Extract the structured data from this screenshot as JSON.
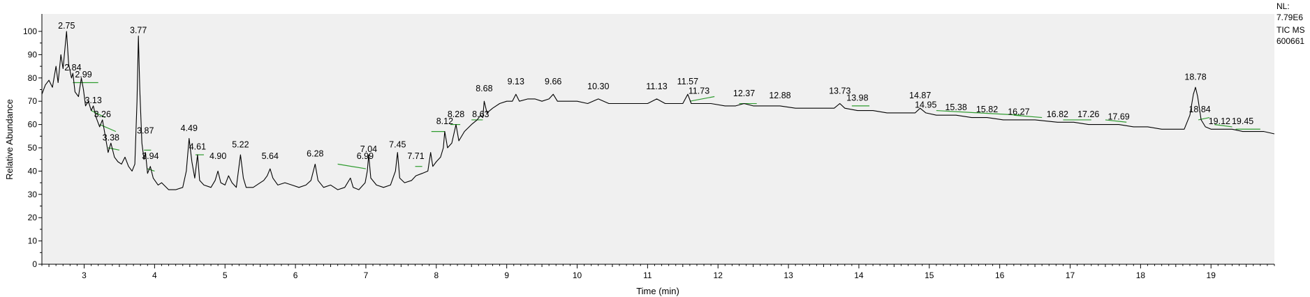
{
  "info": {
    "nl_label": "NL:",
    "nl_value": "7.79E6",
    "scan_filter": "TIC  MS",
    "sample_id": "600661"
  },
  "chart_data": {
    "type": "line",
    "title": "",
    "xlabel": "Time (min)",
    "ylabel": "Relative Abundance",
    "xlim": [
      2.4,
      19.9
    ],
    "ylim": [
      0,
      100
    ],
    "xticks": [
      3,
      4,
      5,
      6,
      7,
      8,
      9,
      10,
      11,
      12,
      13,
      14,
      15,
      16,
      17,
      18,
      19
    ],
    "yticks": [
      0,
      10,
      20,
      30,
      40,
      50,
      60,
      70,
      80,
      90,
      100
    ],
    "grid": false,
    "colors": {
      "trace": "#000000",
      "plot_bg": "#f0f0f0",
      "baseline": "#2e9b2e"
    },
    "series": [
      {
        "points": [
          [
            2.4,
            73
          ],
          [
            2.45,
            77
          ],
          [
            2.5,
            79
          ],
          [
            2.55,
            76
          ],
          [
            2.6,
            85
          ],
          [
            2.63,
            78
          ],
          [
            2.67,
            90
          ],
          [
            2.7,
            84
          ],
          [
            2.75,
            100
          ],
          [
            2.78,
            86
          ],
          [
            2.82,
            80
          ],
          [
            2.84,
            82
          ],
          [
            2.87,
            74
          ],
          [
            2.92,
            72
          ],
          [
            2.96,
            80
          ],
          [
            2.99,
            75
          ],
          [
            3.02,
            68
          ],
          [
            3.06,
            70
          ],
          [
            3.1,
            66
          ],
          [
            3.13,
            68
          ],
          [
            3.17,
            63
          ],
          [
            3.22,
            59
          ],
          [
            3.26,
            62
          ],
          [
            3.3,
            55
          ],
          [
            3.34,
            48
          ],
          [
            3.38,
            52
          ],
          [
            3.43,
            46
          ],
          [
            3.48,
            44
          ],
          [
            3.53,
            43
          ],
          [
            3.58,
            46
          ],
          [
            3.63,
            42
          ],
          [
            3.68,
            40
          ],
          [
            3.72,
            43
          ],
          [
            3.75,
            70
          ],
          [
            3.77,
            98
          ],
          [
            3.79,
            75
          ],
          [
            3.82,
            52
          ],
          [
            3.85,
            45
          ],
          [
            3.87,
            48
          ],
          [
            3.9,
            39
          ],
          [
            3.94,
            42
          ],
          [
            3.98,
            37
          ],
          [
            4.05,
            34
          ],
          [
            4.1,
            35
          ],
          [
            4.2,
            32
          ],
          [
            4.3,
            32
          ],
          [
            4.4,
            33
          ],
          [
            4.45,
            40
          ],
          [
            4.49,
            54
          ],
          [
            4.53,
            44
          ],
          [
            4.57,
            37
          ],
          [
            4.61,
            47
          ],
          [
            4.64,
            36
          ],
          [
            4.7,
            34
          ],
          [
            4.8,
            33
          ],
          [
            4.86,
            36
          ],
          [
            4.9,
            40
          ],
          [
            4.94,
            35
          ],
          [
            5.0,
            34
          ],
          [
            5.05,
            38
          ],
          [
            5.1,
            35
          ],
          [
            5.16,
            33
          ],
          [
            5.22,
            47
          ],
          [
            5.26,
            37
          ],
          [
            5.3,
            33
          ],
          [
            5.4,
            33
          ],
          [
            5.5,
            35
          ],
          [
            5.55,
            36
          ],
          [
            5.6,
            38
          ],
          [
            5.64,
            41
          ],
          [
            5.68,
            37
          ],
          [
            5.75,
            34
          ],
          [
            5.85,
            35
          ],
          [
            5.95,
            34
          ],
          [
            6.05,
            33
          ],
          [
            6.15,
            34
          ],
          [
            6.22,
            36
          ],
          [
            6.28,
            43
          ],
          [
            6.32,
            36
          ],
          [
            6.4,
            33
          ],
          [
            6.5,
            34
          ],
          [
            6.6,
            32
          ],
          [
            6.7,
            33
          ],
          [
            6.78,
            37
          ],
          [
            6.82,
            33
          ],
          [
            6.9,
            32
          ],
          [
            6.99,
            35
          ],
          [
            7.02,
            40
          ],
          [
            7.04,
            47
          ],
          [
            7.07,
            37
          ],
          [
            7.15,
            34
          ],
          [
            7.25,
            33
          ],
          [
            7.35,
            34
          ],
          [
            7.42,
            40
          ],
          [
            7.45,
            48
          ],
          [
            7.48,
            37
          ],
          [
            7.55,
            35
          ],
          [
            7.65,
            36
          ],
          [
            7.71,
            38
          ],
          [
            7.8,
            39
          ],
          [
            7.88,
            40
          ],
          [
            7.92,
            48
          ],
          [
            7.95,
            42
          ],
          [
            8.0,
            44
          ],
          [
            8.06,
            46
          ],
          [
            8.1,
            50
          ],
          [
            8.12,
            57
          ],
          [
            8.16,
            50
          ],
          [
            8.22,
            52
          ],
          [
            8.28,
            60
          ],
          [
            8.32,
            53
          ],
          [
            8.4,
            57
          ],
          [
            8.5,
            60
          ],
          [
            8.58,
            62
          ],
          [
            8.63,
            64
          ],
          [
            8.66,
            63
          ],
          [
            8.68,
            70
          ],
          [
            8.72,
            65
          ],
          [
            8.8,
            67
          ],
          [
            8.9,
            69
          ],
          [
            9.0,
            70
          ],
          [
            9.08,
            70
          ],
          [
            9.13,
            73
          ],
          [
            9.18,
            70
          ],
          [
            9.3,
            71
          ],
          [
            9.4,
            71
          ],
          [
            9.5,
            70
          ],
          [
            9.6,
            71
          ],
          [
            9.66,
            73
          ],
          [
            9.72,
            70
          ],
          [
            9.85,
            70
          ],
          [
            10.0,
            70
          ],
          [
            10.15,
            69
          ],
          [
            10.3,
            71
          ],
          [
            10.45,
            69
          ],
          [
            10.6,
            69
          ],
          [
            10.8,
            69
          ],
          [
            11.0,
            69
          ],
          [
            11.13,
            71
          ],
          [
            11.25,
            69
          ],
          [
            11.4,
            69
          ],
          [
            11.5,
            69
          ],
          [
            11.57,
            73
          ],
          [
            11.62,
            69
          ],
          [
            11.73,
            69
          ],
          [
            11.9,
            69
          ],
          [
            12.1,
            68
          ],
          [
            12.25,
            68
          ],
          [
            12.37,
            69
          ],
          [
            12.5,
            68
          ],
          [
            12.7,
            68
          ],
          [
            12.88,
            68
          ],
          [
            13.1,
            67
          ],
          [
            13.3,
            67
          ],
          [
            13.5,
            67
          ],
          [
            13.65,
            67
          ],
          [
            13.73,
            69
          ],
          [
            13.8,
            67
          ],
          [
            13.98,
            66
          ],
          [
            14.2,
            66
          ],
          [
            14.4,
            65
          ],
          [
            14.6,
            65
          ],
          [
            14.8,
            65
          ],
          [
            14.87,
            67
          ],
          [
            14.95,
            65
          ],
          [
            15.1,
            64
          ],
          [
            15.38,
            64
          ],
          [
            15.6,
            63
          ],
          [
            15.82,
            63
          ],
          [
            16.05,
            62
          ],
          [
            16.27,
            62
          ],
          [
            16.5,
            62
          ],
          [
            16.82,
            61
          ],
          [
            17.05,
            61
          ],
          [
            17.26,
            60
          ],
          [
            17.5,
            60
          ],
          [
            17.69,
            60
          ],
          [
            17.9,
            59
          ],
          [
            18.1,
            59
          ],
          [
            18.3,
            58
          ],
          [
            18.5,
            58
          ],
          [
            18.62,
            58
          ],
          [
            18.7,
            64
          ],
          [
            18.75,
            73
          ],
          [
            18.78,
            76
          ],
          [
            18.81,
            72
          ],
          [
            18.86,
            62
          ],
          [
            18.92,
            59
          ],
          [
            19.0,
            58
          ],
          [
            19.12,
            58
          ],
          [
            19.3,
            58
          ],
          [
            19.45,
            57
          ],
          [
            19.6,
            57
          ],
          [
            19.75,
            57
          ],
          [
            19.9,
            56
          ]
        ]
      }
    ],
    "annotations": [
      {
        "text": "2.75",
        "x": 2.75,
        "y": 100
      },
      {
        "text": "2.84",
        "x": 2.84,
        "y": 82
      },
      {
        "text": "2.99",
        "x": 2.99,
        "y": 79
      },
      {
        "text": "3.13",
        "x": 3.13,
        "y": 68
      },
      {
        "text": "3.26",
        "x": 3.26,
        "y": 62
      },
      {
        "text": "3.38",
        "x": 3.38,
        "y": 52
      },
      {
        "text": "3.77",
        "x": 3.77,
        "y": 98
      },
      {
        "text": "3.87",
        "x": 3.87,
        "y": 55
      },
      {
        "text": "3.94",
        "x": 3.94,
        "y": 44
      },
      {
        "text": "4.49",
        "x": 4.49,
        "y": 56
      },
      {
        "text": "4.61",
        "x": 4.61,
        "y": 48
      },
      {
        "text": "4.90",
        "x": 4.9,
        "y": 44
      },
      {
        "text": "5.22",
        "x": 5.22,
        "y": 49
      },
      {
        "text": "5.64",
        "x": 5.64,
        "y": 44
      },
      {
        "text": "6.28",
        "x": 6.28,
        "y": 45
      },
      {
        "text": "6.99",
        "x": 6.99,
        "y": 44
      },
      {
        "text": "7.04",
        "x": 7.04,
        "y": 47
      },
      {
        "text": "7.45",
        "x": 7.45,
        "y": 49
      },
      {
        "text": "7.71",
        "x": 7.71,
        "y": 44
      },
      {
        "text": "8.12",
        "x": 8.12,
        "y": 59
      },
      {
        "text": "8.28",
        "x": 8.28,
        "y": 62
      },
      {
        "text": "8.63",
        "x": 8.63,
        "y": 62
      },
      {
        "text": "8.68",
        "x": 8.68,
        "y": 73
      },
      {
        "text": "9.13",
        "x": 9.13,
        "y": 76
      },
      {
        "text": "9.66",
        "x": 9.66,
        "y": 76
      },
      {
        "text": "10.30",
        "x": 10.3,
        "y": 74
      },
      {
        "text": "11.13",
        "x": 11.13,
        "y": 74
      },
      {
        "text": "11.57",
        "x": 11.57,
        "y": 76
      },
      {
        "text": "11.73",
        "x": 11.73,
        "y": 72
      },
      {
        "text": "12.37",
        "x": 12.37,
        "y": 71
      },
      {
        "text": "12.88",
        "x": 12.88,
        "y": 70
      },
      {
        "text": "13.73",
        "x": 13.73,
        "y": 72
      },
      {
        "text": "13.98",
        "x": 13.98,
        "y": 69
      },
      {
        "text": "14.87",
        "x": 14.87,
        "y": 70
      },
      {
        "text": "14.95",
        "x": 14.95,
        "y": 66
      },
      {
        "text": "15.38",
        "x": 15.38,
        "y": 65
      },
      {
        "text": "15.82",
        "x": 15.82,
        "y": 64
      },
      {
        "text": "16.27",
        "x": 16.27,
        "y": 63
      },
      {
        "text": "16.82",
        "x": 16.82,
        "y": 62
      },
      {
        "text": "17.26",
        "x": 17.26,
        "y": 62
      },
      {
        "text": "17.69",
        "x": 17.69,
        "y": 61
      },
      {
        "text": "18.78",
        "x": 18.78,
        "y": 78
      },
      {
        "text": "18.84",
        "x": 18.84,
        "y": 64
      },
      {
        "text": "19.12",
        "x": 19.12,
        "y": 59
      },
      {
        "text": "19.45",
        "x": 19.45,
        "y": 59
      }
    ],
    "baseline_segments": [
      [
        [
          2.84,
          78
        ],
        [
          3.2,
          78
        ]
      ],
      [
        [
          3.1,
          66
        ],
        [
          3.3,
          63
        ]
      ],
      [
        [
          3.22,
          60
        ],
        [
          3.45,
          57
        ]
      ],
      [
        [
          3.34,
          50
        ],
        [
          3.5,
          49
        ]
      ],
      [
        [
          3.85,
          49
        ],
        [
          3.95,
          49
        ]
      ],
      [
        [
          3.9,
          41
        ],
        [
          4.0,
          40
        ]
      ],
      [
        [
          4.58,
          47
        ],
        [
          4.7,
          47
        ]
      ],
      [
        [
          6.6,
          43
        ],
        [
          7.0,
          41
        ]
      ],
      [
        [
          7.7,
          42
        ],
        [
          7.8,
          42
        ]
      ],
      [
        [
          7.93,
          57
        ],
        [
          8.12,
          57
        ]
      ],
      [
        [
          8.2,
          60
        ],
        [
          8.34,
          60
        ]
      ],
      [
        [
          8.5,
          62
        ],
        [
          8.66,
          62
        ]
      ],
      [
        [
          11.6,
          70
        ],
        [
          11.95,
          72
        ]
      ],
      [
        [
          12.3,
          69
        ],
        [
          12.55,
          69
        ]
      ],
      [
        [
          13.9,
          68
        ],
        [
          14.15,
          68
        ]
      ],
      [
        [
          15.1,
          66
        ],
        [
          16.3,
          64
        ]
      ],
      [
        [
          16.2,
          64
        ],
        [
          16.6,
          63
        ]
      ],
      [
        [
          16.9,
          62
        ],
        [
          17.3,
          62
        ]
      ],
      [
        [
          17.5,
          62
        ],
        [
          17.8,
          61
        ]
      ],
      [
        [
          18.82,
          62
        ],
        [
          18.98,
          63
        ]
      ],
      [
        [
          19.05,
          60
        ],
        [
          19.3,
          59
        ]
      ],
      [
        [
          19.35,
          58
        ],
        [
          19.7,
          58
        ]
      ]
    ]
  }
}
